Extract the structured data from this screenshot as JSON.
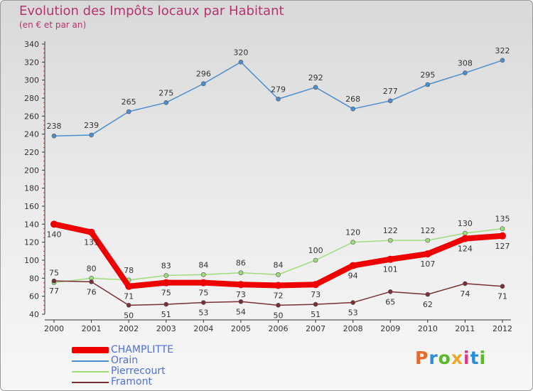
{
  "header": {
    "title": "Evolution des Impôts locaux par Habitant",
    "subtitle": "(en € et par an)"
  },
  "logo": {
    "text": "Proxiti",
    "colors": [
      "#e86a2a",
      "#2a8fd8",
      "#5ab82a",
      "#e8a82a",
      "#d83a8a",
      "#2a8fd8",
      "#5ab82a"
    ]
  },
  "chart_data": {
    "type": "line",
    "x": [
      "2000",
      "2001",
      "2002",
      "2003",
      "2004",
      "2005",
      "2006",
      "2007",
      "2008",
      "2009",
      "2010",
      "2011",
      "2012"
    ],
    "ylim": [
      40,
      340
    ],
    "yticks": [
      40,
      60,
      80,
      100,
      120,
      140,
      160,
      180,
      200,
      220,
      240,
      260,
      280,
      300,
      320,
      340
    ],
    "grid": false,
    "legend": "bottom-left",
    "series": [
      {
        "name": "Orain",
        "color": "#4a8fd0",
        "values": [
          238,
          239,
          265,
          275,
          296,
          320,
          279,
          292,
          268,
          277,
          295,
          308,
          322
        ]
      },
      {
        "name": "Pierrecourt",
        "color": "#9ede7a",
        "values": [
          75,
          80,
          78,
          83,
          84,
          86,
          84,
          100,
          120,
          122,
          122,
          130,
          135
        ]
      },
      {
        "name": "Framont",
        "color": "#7a2e36",
        "values": [
          77,
          76,
          50,
          51,
          53,
          54,
          50,
          51,
          53,
          65,
          62,
          74,
          71
        ]
      },
      {
        "name": "CHAMPLITTE",
        "color": "#ee0000",
        "values": [
          140,
          131,
          71,
          75,
          75,
          73,
          72,
          73,
          94,
          101,
          107,
          124,
          127
        ]
      }
    ],
    "labels": [
      {
        "series": "Orain",
        "values": [
          238,
          239,
          265,
          275,
          296,
          320,
          279,
          292,
          268,
          277,
          295,
          308,
          322
        ]
      },
      {
        "series": "Pierrecourt",
        "values": [
          75,
          80,
          78,
          83,
          84,
          86,
          84,
          100,
          120,
          122,
          122,
          130,
          135
        ]
      },
      {
        "series": "Framont",
        "values": [
          77,
          76,
          50,
          51,
          53,
          54,
          50,
          51,
          53,
          65,
          62,
          74,
          71
        ]
      },
      {
        "series": "CHAMPLITTE",
        "values": [
          140,
          131,
          71,
          75,
          75,
          73,
          72,
          73,
          94,
          101,
          107,
          124,
          127
        ]
      }
    ]
  },
  "legend": {
    "items": [
      {
        "label": "CHAMPLITTE",
        "color": "#ee0000",
        "thick": true
      },
      {
        "label": "Orain",
        "color": "#4a8fd0",
        "thick": false
      },
      {
        "label": "Pierrecourt",
        "color": "#9ede7a",
        "thick": false
      },
      {
        "label": "Framont",
        "color": "#7a2e36",
        "thick": false
      }
    ]
  }
}
